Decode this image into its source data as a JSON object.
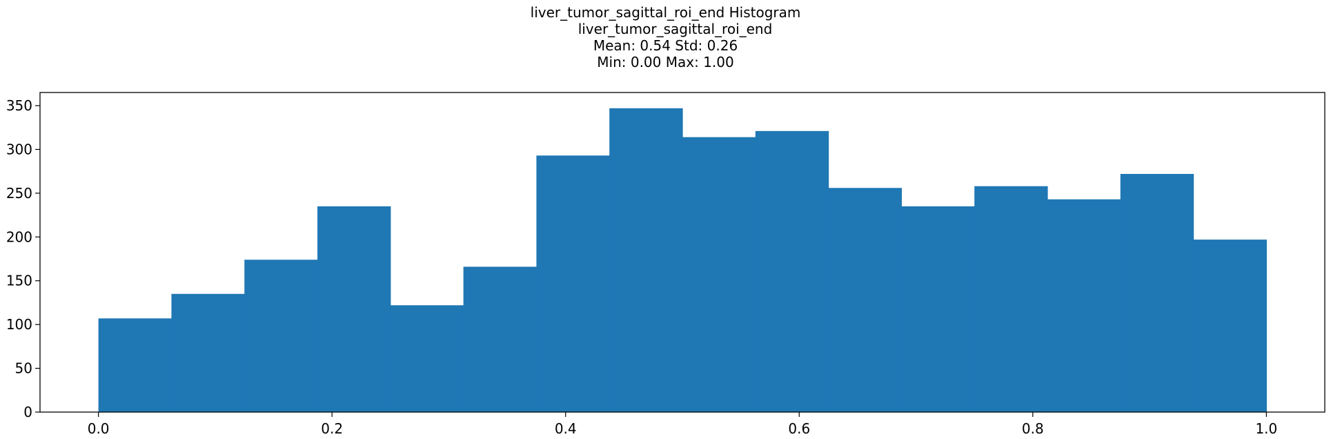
{
  "chart_data": {
    "type": "bar",
    "title": "liver_tumor_sagittal_roi_end Histogram",
    "subtitle_lines": [
      "liver_tumor_sagittal_roi_end",
      "Mean: 0.54 Std: 0.26",
      "Min: 0.00 Max: 1.00"
    ],
    "xlabel": "",
    "ylabel": "",
    "bin_edges": [
      0.0,
      0.0625,
      0.125,
      0.1875,
      0.25,
      0.3125,
      0.375,
      0.4375,
      0.5,
      0.5625,
      0.625,
      0.6875,
      0.75,
      0.8125,
      0.875,
      0.9375,
      1.0
    ],
    "values": [
      107,
      135,
      174,
      235,
      122,
      166,
      293,
      347,
      314,
      321,
      256,
      235,
      258,
      243,
      272,
      197
    ],
    "xlim": [
      -0.05,
      1.05
    ],
    "ylim": [
      0,
      365
    ],
    "x_ticks": [
      0.0,
      0.2,
      0.4,
      0.6,
      0.8,
      1.0
    ],
    "x_tick_labels": [
      "0.0",
      "0.2",
      "0.4",
      "0.6",
      "0.8",
      "1.0"
    ],
    "y_ticks": [
      0,
      50,
      100,
      150,
      200,
      250,
      300,
      350
    ],
    "y_tick_labels": [
      "0",
      "50",
      "100",
      "150",
      "200",
      "250",
      "300",
      "350"
    ],
    "bar_color": "#1f77b4",
    "grid": false,
    "legend": "none"
  }
}
